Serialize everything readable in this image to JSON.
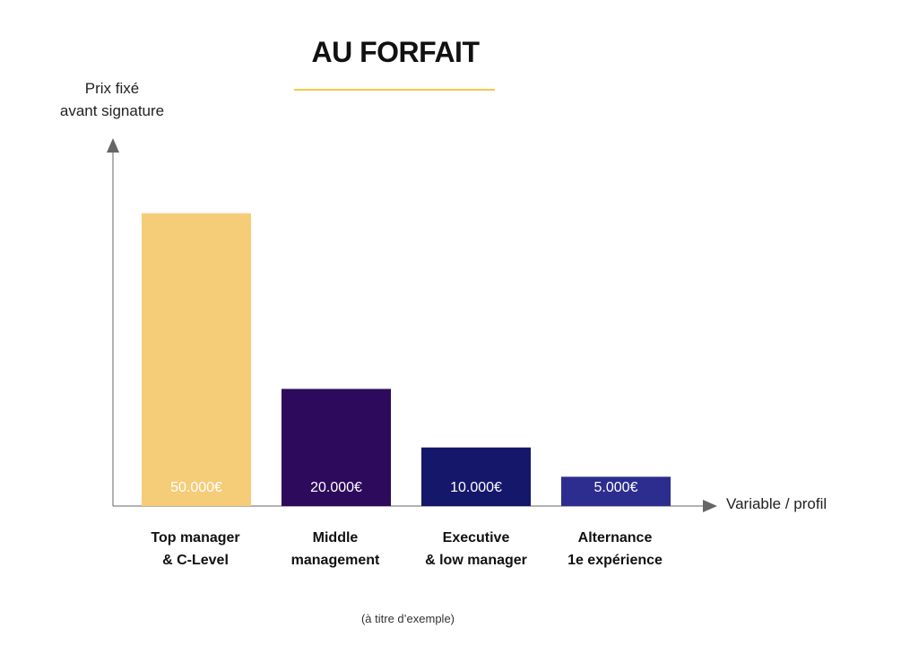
{
  "chart_data": {
    "type": "bar",
    "title": "AU FORFAIT",
    "ylabel_lines": [
      "Prix fixé",
      "avant signature"
    ],
    "xlabel": "Variable / profil",
    "categories": [
      [
        "Top manager",
        "& C-Level"
      ],
      [
        "Middle",
        "management"
      ],
      [
        "Executive",
        "& low manager"
      ],
      [
        "Alternance",
        "1e expérience"
      ]
    ],
    "values": [
      50000,
      20000,
      10000,
      5000
    ],
    "value_labels": [
      "50.000€",
      "20.000€",
      "10.000€",
      "5.000€"
    ],
    "colors": [
      "#f5cd79",
      "#2d0a5c",
      "#15176b",
      "#2c2d8f"
    ],
    "ylim": [
      0,
      55000
    ],
    "grid": false,
    "footnote": "(à titre d’exemple)"
  }
}
